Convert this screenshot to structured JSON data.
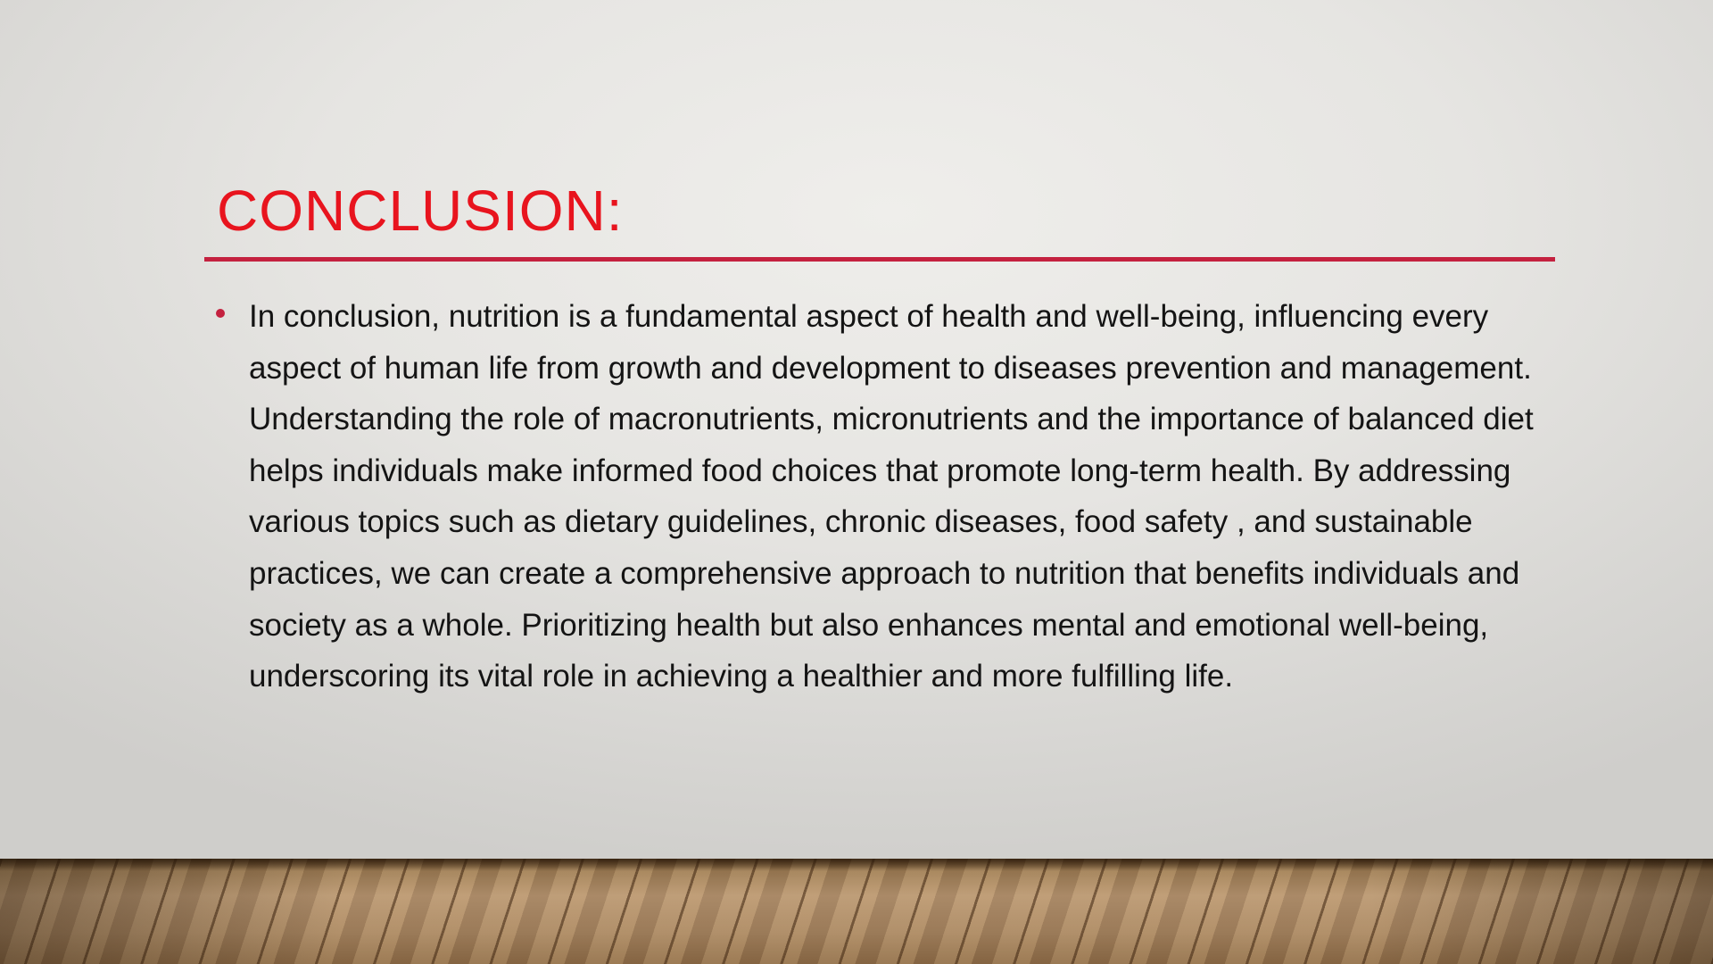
{
  "slide": {
    "title": "CONCLUSION:",
    "bullets": [
      {
        "text": "In conclusion, nutrition is a fundamental aspect of health and well-being, influencing every aspect of human life from growth and development to diseases prevention and management. Understanding the role of macronutrients, micronutrients and the importance of balanced diet helps individuals make informed food choices that promote long-term health. By addressing various topics such as dietary guidelines, chronic diseases, food safety , and sustainable practices, we can create a comprehensive approach to nutrition that benefits individuals and society as a whole. Prioritizing health but also enhances mental and emotional well-being, underscoring its vital role in achieving a healthier and more fulfilling life."
      }
    ]
  },
  "colors": {
    "title": "#e8141e",
    "rule": "#c4213f",
    "bullet": "#c4213f",
    "body_text": "#141414"
  },
  "background": {
    "wall": "light-gray-gradient",
    "floor": "wood-plank-floor"
  }
}
